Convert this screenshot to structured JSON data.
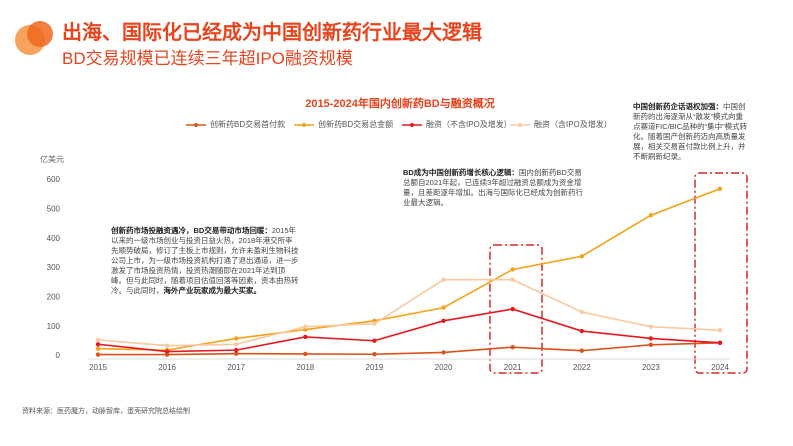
{
  "header": {
    "title": "出海、国际化已经成为中国创新药行业最大逻辑",
    "subtitle": "BD交易规模已连续三年超IPO融资规模"
  },
  "chart_data": {
    "type": "line",
    "title": "2015-2024年国内创新药BD与融资概况",
    "y_label": "亿美元",
    "categories": [
      "2015",
      "2016",
      "2017",
      "2018",
      "2019",
      "2020",
      "2021",
      "2022",
      "2023",
      "2024"
    ],
    "series": [
      {
        "name": "创新药BD交易首付款",
        "color": "#d9531e",
        "values": [
          5,
          5,
          8,
          7,
          6,
          12,
          30,
          18,
          38,
          45
        ]
      },
      {
        "name": "创新药BD交易总金额",
        "color": "#f5a21b",
        "values": [
          25,
          20,
          60,
          90,
          120,
          165,
          295,
          340,
          480,
          570
        ]
      },
      {
        "name": "融资（不含IPO及增发）",
        "color": "#e5191f",
        "values": [
          40,
          15,
          20,
          65,
          52,
          120,
          160,
          85,
          60,
          45
        ]
      },
      {
        "name": "融资（含IPO及增发）",
        "color": "#f9c9a0",
        "values": [
          55,
          35,
          40,
          100,
          110,
          260,
          260,
          150,
          100,
          88
        ]
      }
    ],
    "ylim": [
      0,
      600
    ],
    "yticks": [
      0,
      100,
      200,
      300,
      400,
      500,
      600
    ],
    "annotations": [
      {
        "lead": "中国创新药企话语权加强：",
        "text": "中国创新药的出海逐渐从“散发”模式向重点赛道FIC/BIC品种的“集中”模式转化。随着国产创新药迈向高质量发展，相关交易首付款比例上升，并不断刷新纪录。"
      },
      {
        "lead": "BD成为中国创新药增长核心逻辑：",
        "text": "国内创新药BD交易总额自2021年起，已连续3年超过融资总额成为资金增量，且差距逐年增加。出海与国际化已经成为创新药行业最大逻辑。"
      },
      {
        "lead": "创新药市场投融资遇冷，BD交易带动市场回暖：",
        "text": "2015年以来的一级市场创业与投资日益火热，2018年港交所率先顺势破局，修订了主板上市规则，允许未盈利生物科技公司上市，为一级市场投资机构打通了退出通道，进一步激发了市场投资热情，投资热潮随即在2021年达到顶峰。但与此同时，随着项目估值回落等因素，资本由热转冷。与此同时，",
        "tail": "海外产业玩家成为最大买家。"
      }
    ]
  },
  "source": "资料来源：医药魔方，动脉智库，蛋壳研究院总结绘制"
}
